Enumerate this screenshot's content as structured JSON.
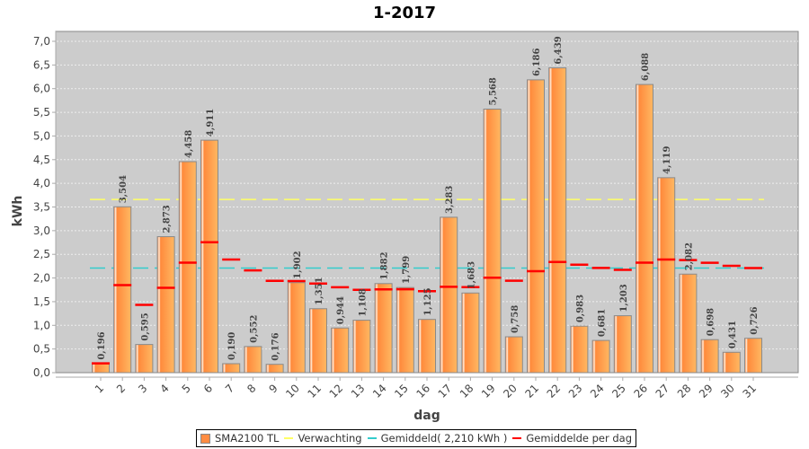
{
  "chart_data": {
    "type": "bar",
    "title": "1-2017",
    "xlabel": "dag",
    "ylabel": "kWh",
    "ylim": [
      0,
      7.0
    ],
    "yticks": [
      "0,0",
      "0,5",
      "1,0",
      "1,5",
      "2,0",
      "2,5",
      "3,0",
      "3,5",
      "4,0",
      "4,5",
      "5,0",
      "5,5",
      "6,0",
      "6,5",
      "7,0"
    ],
    "grid": true,
    "legend_position": "bottom",
    "categories": [
      "1",
      "2",
      "3",
      "4",
      "5",
      "6",
      "7",
      "8",
      "9",
      "10",
      "11",
      "12",
      "13",
      "14",
      "15",
      "16",
      "17",
      "18",
      "19",
      "20",
      "21",
      "22",
      "23",
      "24",
      "25",
      "26",
      "27",
      "28",
      "29",
      "30",
      "31"
    ],
    "series": [
      {
        "name": "SMA2100 TL",
        "type": "bar",
        "color": "#ff8c42",
        "values": [
          0.196,
          3.504,
          0.595,
          2.873,
          4.458,
          4.911,
          0.19,
          0.552,
          0.176,
          1.902,
          1.351,
          0.944,
          1.108,
          1.882,
          1.799,
          1.125,
          3.283,
          1.683,
          5.568,
          0.758,
          6.186,
          6.439,
          0.983,
          0.681,
          1.203,
          6.088,
          4.119,
          2.082,
          0.698,
          0.431,
          0.726
        ],
        "labels": [
          "0,196",
          "3,504",
          "0,595",
          "2,873",
          "4,458",
          "4,911",
          "0,190",
          "0,552",
          "0,176",
          "1,902",
          "1,351",
          "0,944",
          "1,108",
          "1,882",
          "1,799",
          "1,125",
          "3,283",
          "1,683",
          "5,568",
          "0,758",
          "6,186",
          "6,439",
          "0,983",
          "0,681",
          "1,203",
          "6,088",
          "4,119",
          "2,082",
          "0,698",
          "0,431",
          "0,726"
        ]
      },
      {
        "name": "Verwachting",
        "type": "hline",
        "color": "#ffff66",
        "value": 3.66
      },
      {
        "name": "Gemiddeld( 2,210 kWh )",
        "type": "hline",
        "color": "#33cccc",
        "value": 2.21
      },
      {
        "name": "Gemiddelde per dag",
        "type": "marker",
        "color": "#ff0000",
        "values": [
          0.196,
          1.85,
          1.432,
          1.792,
          2.325,
          2.756,
          2.39,
          2.16,
          1.94,
          1.936,
          1.883,
          1.804,
          1.75,
          1.759,
          1.762,
          1.722,
          1.814,
          1.807,
          2.005,
          1.942,
          2.144,
          2.339,
          2.28,
          2.213,
          2.173,
          2.324,
          2.39,
          2.379,
          2.321,
          2.258,
          2.209
        ]
      }
    ]
  },
  "legend": {
    "items": [
      {
        "label": "SMA2100 TL",
        "color": "#ff8c42",
        "kind": "box"
      },
      {
        "label": "Verwachting",
        "color": "#ffff66",
        "kind": "line"
      },
      {
        "label": "Gemiddeld( 2,210 kWh )",
        "color": "#33cccc",
        "kind": "line"
      },
      {
        "label": "Gemiddelde per dag",
        "color": "#ff0000",
        "kind": "line"
      }
    ]
  }
}
